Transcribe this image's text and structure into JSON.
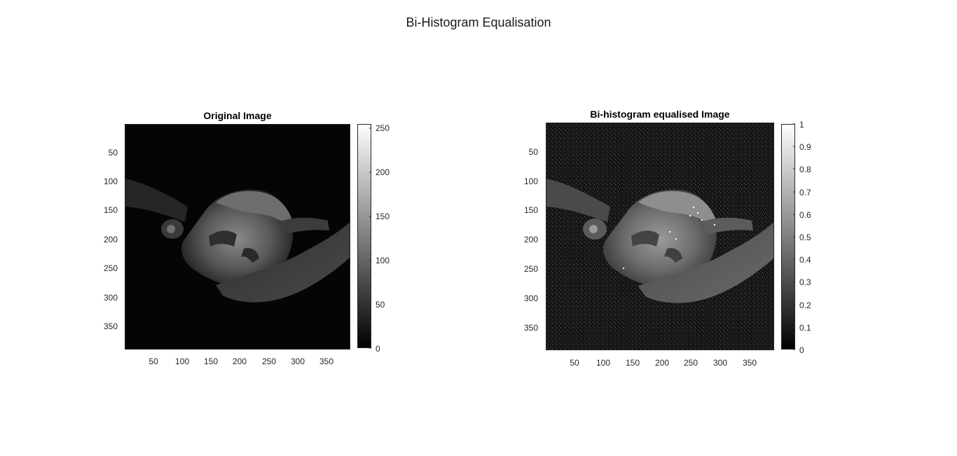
{
  "figure": {
    "title": "Bi-Histogram Equalisation"
  },
  "panels": [
    {
      "title": "Original Image",
      "y_ticks": [
        "50",
        "100",
        "150",
        "200",
        "250",
        "300",
        "350"
      ],
      "x_ticks": [
        "50",
        "100",
        "150",
        "200",
        "250",
        "300",
        "350"
      ],
      "colorbar_ticks": [
        "0",
        "50",
        "100",
        "150",
        "200",
        "250"
      ],
      "colorbar_range": [
        0,
        255
      ],
      "colormap": "gray",
      "image_extent": [
        1,
        390
      ]
    },
    {
      "title": "Bi-histogram equalised Image",
      "y_ticks": [
        "50",
        "100",
        "150",
        "200",
        "250",
        "300",
        "350"
      ],
      "x_ticks": [
        "50",
        "100",
        "150",
        "200",
        "250",
        "300",
        "350"
      ],
      "colorbar_ticks": [
        "0",
        "0.1",
        "0.2",
        "0.3",
        "0.4",
        "0.5",
        "0.6",
        "0.7",
        "0.8",
        "0.9",
        "1"
      ],
      "colorbar_range": [
        0,
        1
      ],
      "colormap": "gray",
      "image_extent": [
        1,
        390
      ]
    }
  ],
  "colors": {
    "background": "#ffffff",
    "axis": "#262626",
    "original_bg": "#050505",
    "equalised_bg": "#121212"
  }
}
